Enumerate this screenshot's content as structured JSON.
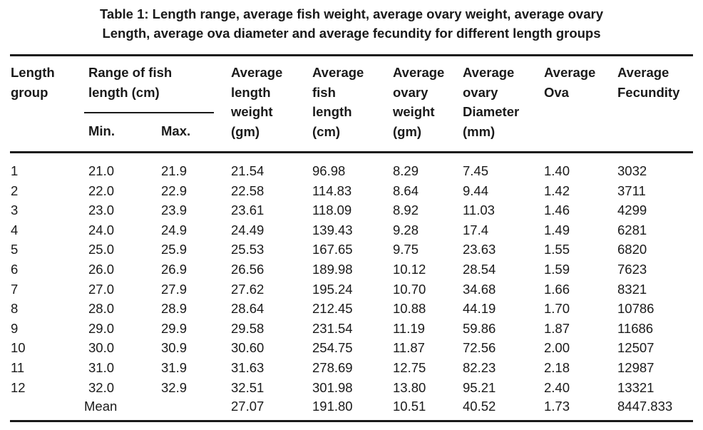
{
  "title": [
    "Table 1: Length range, average fish weight, average ovary weight, average ovary",
    "Length, average ova diameter and average fecundity for different length groups"
  ],
  "table": {
    "headers": [
      [
        "Length",
        "group"
      ],
      [
        "Range of  fish",
        "length (cm)"
      ],
      [
        "Average",
        "length",
        "weight",
        "(gm)"
      ],
      [
        "Average",
        "fish",
        "length",
        "(cm)"
      ],
      [
        "Average",
        "ovary",
        "weight",
        "(gm)"
      ],
      [
        "Average",
        "ovary",
        "Diameter",
        "(mm)"
      ],
      [
        "Average",
        "Ova"
      ],
      [
        "Average",
        "Fecundity"
      ]
    ],
    "subheaders": [
      "Min.",
      "Max."
    ],
    "rows": [
      [
        "1",
        "21.0",
        "21.9",
        "21.54",
        "96.98",
        "8.29",
        "7.45",
        "1.40",
        "3032"
      ],
      [
        "2",
        "22.0",
        "22.9",
        "22.58",
        "114.83",
        "8.64",
        "9.44",
        "1.42",
        "3711"
      ],
      [
        "3",
        "23.0",
        "23.9",
        "23.61",
        "118.09",
        "8.92",
        "11.03",
        "1.46",
        "4299"
      ],
      [
        "4",
        "24.0",
        "24.9",
        "24.49",
        "139.43",
        "9.28",
        "17.4",
        "1.49",
        "6281"
      ],
      [
        "5",
        "25.0",
        "25.9",
        "25.53",
        "167.65",
        "9.75",
        "23.63",
        "1.55",
        "6820"
      ],
      [
        "6",
        "26.0",
        "26.9",
        "26.56",
        "189.98",
        "10.12",
        "28.54",
        "1.59",
        "7623"
      ],
      [
        "7",
        "27.0",
        "27.9",
        "27.62",
        "195.24",
        "10.70",
        "34.68",
        "1.66",
        "8321"
      ],
      [
        "8",
        "28.0",
        "28.9",
        "28.64",
        "212.45",
        "10.88",
        "44.19",
        "1.70",
        "10786"
      ],
      [
        "9",
        "29.0",
        "29.9",
        "29.58",
        "231.54",
        "11.19",
        "59.86",
        "1.87",
        "11686"
      ],
      [
        "10",
        "30.0",
        "30.9",
        "30.60",
        "254.75",
        "11.87",
        "72.56",
        "2.00",
        "12507"
      ],
      [
        "11",
        "31.0",
        "31.9",
        "31.63",
        "278.69",
        "12.75",
        "82.23",
        "2.18",
        "12987"
      ],
      [
        "12",
        "32.0",
        "32.9",
        "32.51",
        "301.98",
        "13.80",
        "95.21",
        "2.40",
        "13321"
      ]
    ],
    "mean": {
      "label": "Mean",
      "values": [
        "27.07",
        "191.80",
        "10.51",
        "40.52",
        "1.73",
        "8447.833"
      ]
    }
  }
}
